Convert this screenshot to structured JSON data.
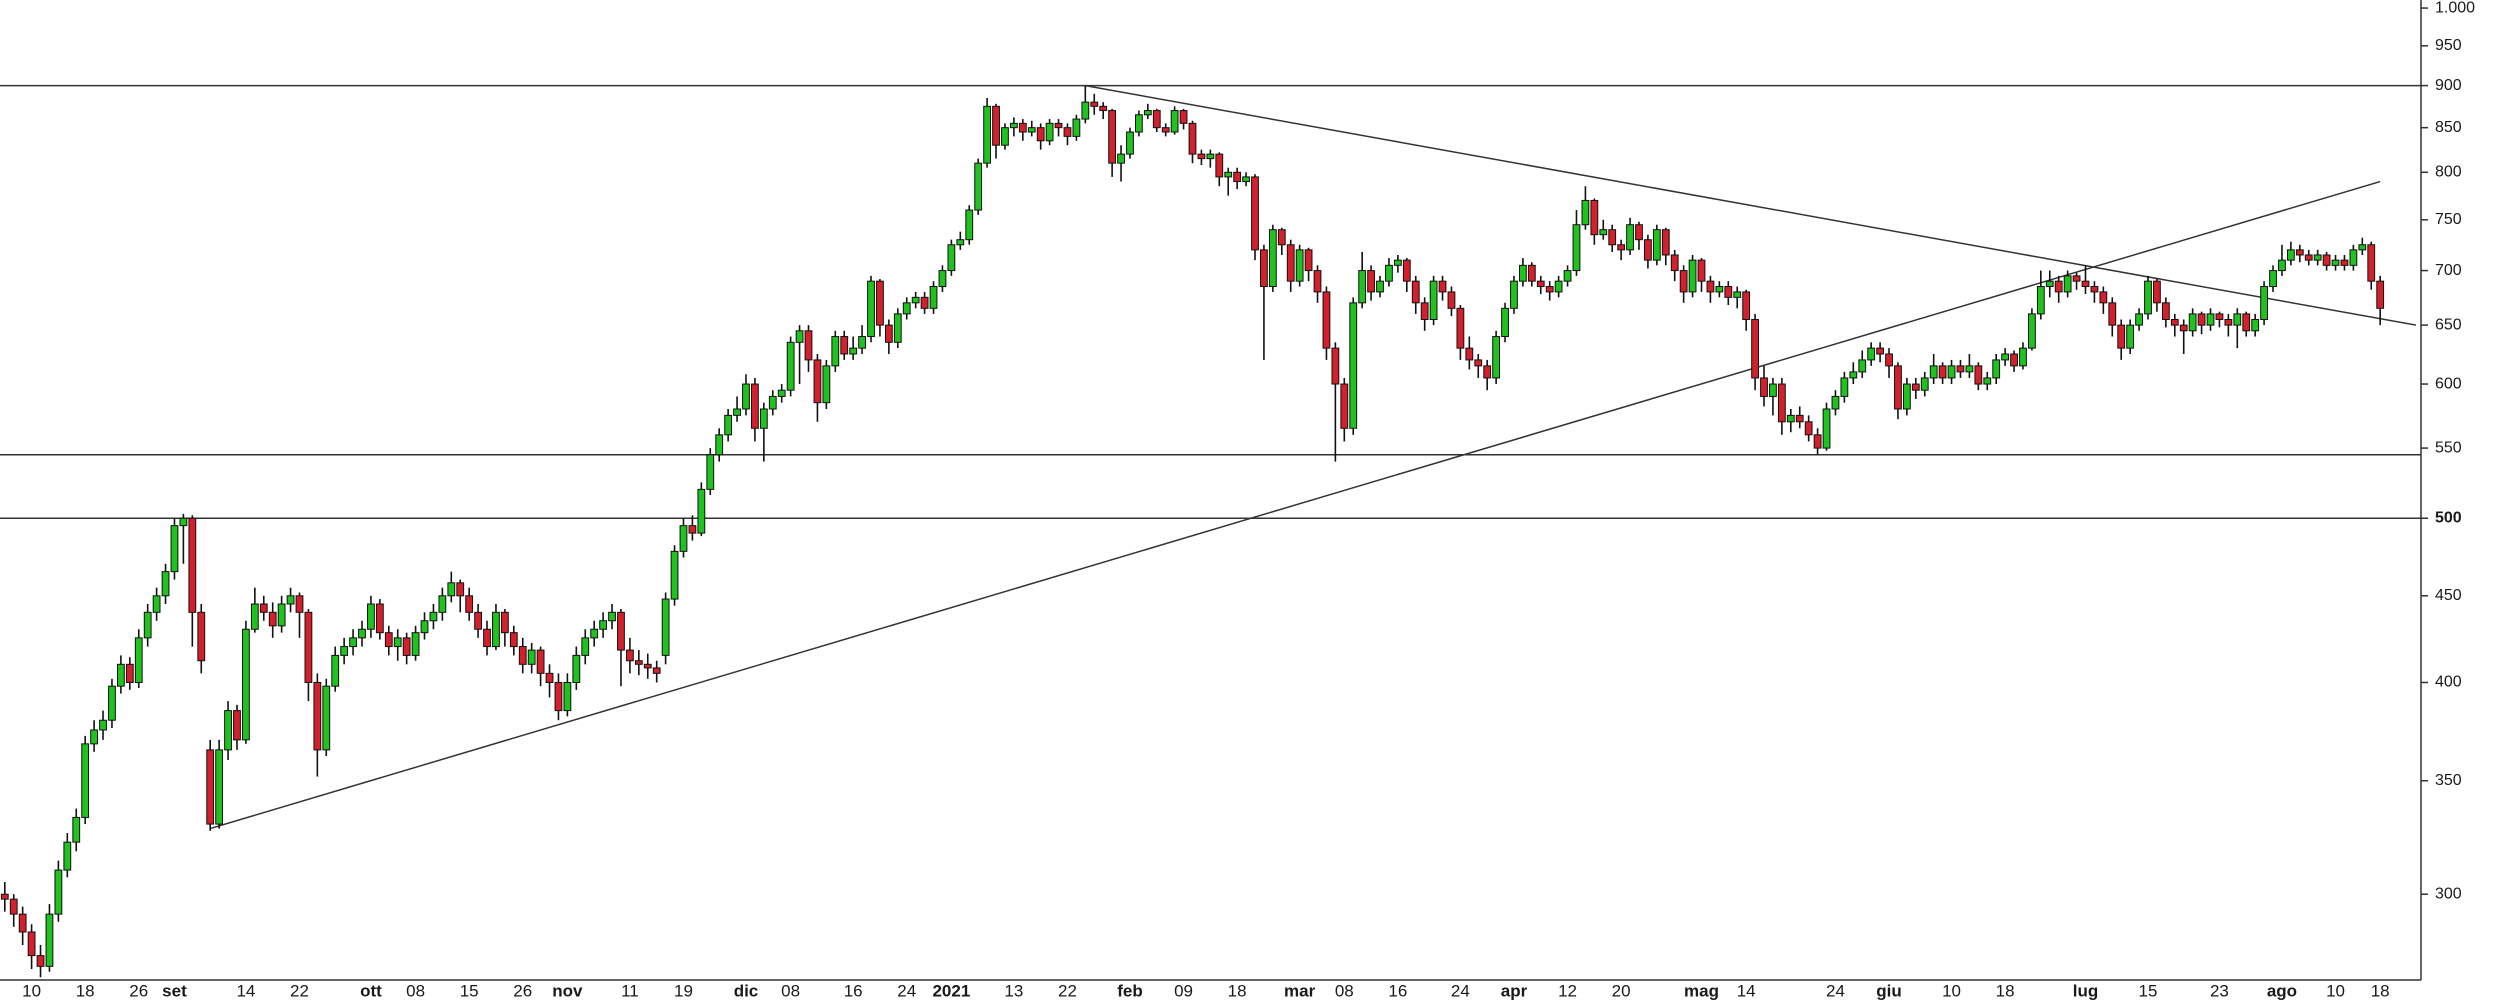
{
  "chart_data": {
    "type": "candlestick",
    "log_scale": true,
    "ylim": [
      267,
      1011
    ],
    "yticks": [
      300,
      350,
      400,
      450,
      500,
      550,
      600,
      650,
      700,
      750,
      800,
      850,
      900,
      950,
      {
        "value": 1000,
        "label": "1.000"
      }
    ],
    "up_color": "#1fc21f",
    "down_color": "#d3202c",
    "hlines": [
      900,
      545,
      500
    ],
    "trendlines": [
      {
        "x": [
          23,
          266
        ],
        "y": [
          328,
          790
        ]
      },
      {
        "x": [
          121,
          270
        ],
        "y": [
          900,
          650
        ]
      }
    ],
    "categories": [
      null,
      null,
      null,
      "10",
      null,
      null,
      null,
      null,
      null,
      "18",
      null,
      null,
      null,
      null,
      null,
      "26",
      null,
      null,
      null,
      "set",
      null,
      null,
      null,
      null,
      null,
      null,
      null,
      "14",
      null,
      null,
      null,
      null,
      null,
      "22",
      null,
      null,
      null,
      null,
      null,
      null,
      null,
      "ott",
      null,
      null,
      null,
      null,
      "08",
      null,
      null,
      null,
      null,
      null,
      "15",
      null,
      null,
      null,
      null,
      null,
      "26",
      null,
      null,
      null,
      null,
      "nov",
      null,
      null,
      null,
      null,
      null,
      null,
      "11",
      null,
      null,
      null,
      null,
      null,
      "19",
      null,
      null,
      null,
      null,
      null,
      null,
      "dic",
      null,
      null,
      null,
      null,
      "08",
      null,
      null,
      null,
      null,
      null,
      null,
      "16",
      null,
      null,
      null,
      null,
      null,
      "24",
      null,
      null,
      null,
      null,
      "2021",
      null,
      null,
      null,
      null,
      null,
      null,
      "13",
      null,
      null,
      null,
      null,
      null,
      "22",
      null,
      null,
      null,
      null,
      null,
      null,
      "feb",
      null,
      null,
      null,
      null,
      null,
      "09",
      null,
      null,
      null,
      null,
      null,
      "18",
      null,
      null,
      null,
      null,
      null,
      null,
      "mar",
      null,
      null,
      null,
      null,
      "08",
      null,
      null,
      null,
      null,
      null,
      "16",
      null,
      null,
      null,
      null,
      null,
      null,
      "24",
      null,
      null,
      null,
      null,
      null,
      "apr",
      null,
      null,
      null,
      null,
      null,
      "12",
      null,
      null,
      null,
      null,
      null,
      "20",
      null,
      null,
      null,
      null,
      null,
      null,
      null,
      null,
      "mag",
      null,
      null,
      null,
      null,
      "14",
      null,
      null,
      null,
      null,
      null,
      null,
      null,
      null,
      null,
      "24",
      null,
      null,
      null,
      null,
      null,
      "giu",
      null,
      null,
      null,
      null,
      null,
      null,
      "10",
      null,
      null,
      null,
      null,
      null,
      "18",
      null,
      null,
      null,
      null,
      null,
      null,
      null,
      null,
      "lug",
      null,
      null,
      null,
      null,
      null,
      null,
      "15",
      null,
      null,
      null,
      null,
      null,
      null,
      null,
      "23",
      null,
      null,
      null,
      null,
      null,
      null,
      "ago",
      null,
      null,
      null,
      null,
      null,
      "10",
      null,
      null,
      null,
      null,
      "18"
    ],
    "open": [
      300,
      298,
      292,
      285,
      276,
      272,
      292,
      310,
      322,
      333,
      368,
      375,
      380,
      398,
      410,
      400,
      425,
      440,
      450,
      465,
      495,
      500,
      440,
      365,
      330,
      365,
      385,
      370,
      430,
      445,
      440,
      432,
      445,
      450,
      440,
      400,
      365,
      398,
      415,
      420,
      425,
      430,
      445,
      428,
      420,
      425,
      415,
      428,
      435,
      440,
      450,
      458,
      450,
      440,
      430,
      420,
      440,
      428,
      420,
      410,
      418,
      405,
      400,
      385,
      400,
      415,
      425,
      430,
      435,
      440,
      418,
      412,
      410,
      408,
      415,
      448,
      478,
      495,
      490,
      520,
      545,
      560,
      575,
      580,
      600,
      565,
      580,
      590,
      595,
      635,
      645,
      620,
      585,
      615,
      640,
      625,
      630,
      640,
      690,
      650,
      635,
      660,
      670,
      675,
      665,
      685,
      700,
      725,
      730,
      760,
      810,
      875,
      830,
      850,
      855,
      845,
      850,
      835,
      855,
      850,
      840,
      860,
      880,
      875,
      870,
      810,
      820,
      845,
      865,
      870,
      850,
      845,
      870,
      855,
      820,
      815,
      820,
      795,
      800,
      790,
      795,
      720,
      685,
      740,
      725,
      690,
      720,
      700,
      680,
      630,
      600,
      565,
      670,
      700,
      680,
      690,
      705,
      710,
      690,
      670,
      655,
      690,
      680,
      665,
      630,
      620,
      615,
      605,
      640,
      665,
      690,
      705,
      690,
      685,
      680,
      690,
      700,
      745,
      770,
      735,
      740,
      725,
      720,
      745,
      730,
      710,
      740,
      715,
      700,
      680,
      710,
      690,
      680,
      685,
      675,
      680,
      655,
      605,
      590,
      600,
      570,
      575,
      570,
      560,
      550,
      580,
      590,
      605,
      610,
      620,
      630,
      625,
      615,
      580,
      600,
      595,
      605,
      615,
      605,
      615,
      610,
      615,
      600,
      605,
      620,
      625,
      615,
      630,
      660,
      685,
      690,
      680,
      695,
      690,
      685,
      680,
      670,
      650,
      630,
      650,
      660,
      690,
      670,
      655,
      650,
      645,
      660,
      650,
      660,
      655,
      650,
      660,
      645,
      655,
      685,
      700,
      710,
      720,
      715,
      710,
      715,
      705,
      710,
      705,
      720,
      725,
      690
    ],
    "high": [
      305,
      300,
      295,
      288,
      280,
      296,
      314,
      326,
      337,
      372,
      380,
      385,
      402,
      415,
      414,
      430,
      445,
      455,
      470,
      500,
      503,
      502,
      445,
      370,
      370,
      390,
      388,
      435,
      455,
      450,
      446,
      450,
      455,
      452,
      442,
      405,
      402,
      420,
      425,
      430,
      435,
      450,
      448,
      432,
      430,
      428,
      432,
      440,
      445,
      455,
      465,
      460,
      455,
      445,
      435,
      445,
      442,
      432,
      425,
      422,
      420,
      410,
      405,
      405,
      420,
      430,
      435,
      440,
      445,
      442,
      425,
      418,
      416,
      412,
      452,
      482,
      500,
      502,
      525,
      550,
      565,
      580,
      590,
      608,
      605,
      585,
      595,
      600,
      640,
      650,
      650,
      625,
      620,
      645,
      645,
      640,
      650,
      695,
      692,
      655,
      665,
      675,
      680,
      680,
      690,
      705,
      730,
      738,
      765,
      815,
      885,
      878,
      855,
      862,
      860,
      858,
      855,
      860,
      860,
      855,
      865,
      900,
      890,
      880,
      872,
      830,
      850,
      870,
      878,
      872,
      855,
      875,
      872,
      858,
      825,
      825,
      822,
      805,
      805,
      800,
      798,
      725,
      745,
      742,
      730,
      725,
      722,
      705,
      685,
      635,
      605,
      675,
      718,
      705,
      695,
      712,
      715,
      712,
      695,
      675,
      695,
      695,
      685,
      668,
      640,
      625,
      620,
      645,
      670,
      695,
      712,
      708,
      695,
      690,
      695,
      705,
      760,
      785,
      772,
      750,
      745,
      730,
      752,
      748,
      735,
      745,
      742,
      720,
      705,
      715,
      712,
      695,
      690,
      690,
      685,
      682,
      660,
      615,
      605,
      605,
      580,
      582,
      575,
      565,
      585,
      595,
      610,
      618,
      628,
      635,
      635,
      630,
      618,
      605,
      605,
      610,
      625,
      618,
      620,
      620,
      625,
      618,
      610,
      625,
      630,
      628,
      635,
      665,
      700,
      700,
      695,
      700,
      698,
      705,
      690,
      685,
      675,
      655,
      655,
      665,
      695,
      692,
      675,
      660,
      655,
      665,
      662,
      665,
      662,
      660,
      665,
      662,
      660,
      690,
      705,
      725,
      728,
      725,
      720,
      720,
      718,
      715,
      715,
      725,
      732,
      728,
      695
    ],
    "low": [
      293,
      287,
      280,
      271,
      268,
      270,
      289,
      307,
      318,
      330,
      364,
      370,
      376,
      394,
      396,
      397,
      420,
      435,
      445,
      460,
      470,
      420,
      405,
      327,
      328,
      360,
      365,
      368,
      428,
      435,
      425,
      428,
      440,
      425,
      390,
      352,
      362,
      395,
      410,
      415,
      420,
      425,
      424,
      415,
      412,
      410,
      412,
      424,
      430,
      435,
      446,
      440,
      435,
      425,
      415,
      418,
      420,
      415,
      405,
      405,
      398,
      392,
      380,
      382,
      396,
      410,
      420,
      425,
      430,
      398,
      405,
      404,
      402,
      400,
      410,
      444,
      474,
      485,
      488,
      516,
      540,
      555,
      570,
      575,
      555,
      540,
      575,
      585,
      590,
      600,
      610,
      570,
      580,
      610,
      620,
      620,
      625,
      635,
      640,
      625,
      630,
      655,
      665,
      660,
      660,
      680,
      695,
      720,
      725,
      755,
      805,
      815,
      825,
      840,
      835,
      840,
      825,
      830,
      840,
      830,
      835,
      855,
      865,
      860,
      795,
      790,
      815,
      840,
      860,
      845,
      840,
      842,
      848,
      810,
      808,
      805,
      785,
      775,
      782,
      785,
      710,
      620,
      680,
      715,
      680,
      685,
      690,
      670,
      620,
      540,
      555,
      560,
      665,
      672,
      675,
      685,
      698,
      680,
      660,
      645,
      650,
      672,
      658,
      620,
      612,
      605,
      595,
      600,
      635,
      660,
      685,
      685,
      678,
      672,
      675,
      685,
      695,
      740,
      725,
      730,
      718,
      710,
      715,
      720,
      702,
      705,
      705,
      690,
      670,
      675,
      680,
      670,
      675,
      668,
      665,
      645,
      595,
      582,
      575,
      560,
      562,
      565,
      555,
      545,
      548,
      575,
      585,
      600,
      605,
      615,
      618,
      605,
      572,
      575,
      588,
      590,
      600,
      600,
      600,
      605,
      605,
      595,
      595,
      600,
      615,
      610,
      612,
      628,
      655,
      675,
      670,
      675,
      682,
      678,
      670,
      660,
      640,
      620,
      625,
      645,
      655,
      662,
      648,
      640,
      625,
      640,
      642,
      645,
      648,
      640,
      630,
      640,
      640,
      650,
      680,
      695,
      705,
      708,
      705,
      705,
      700,
      700,
      700,
      700,
      715,
      682,
      650
    ],
    "close": [
      298,
      292,
      285,
      276,
      272,
      292,
      310,
      322,
      333,
      368,
      375,
      380,
      398,
      410,
      400,
      425,
      440,
      450,
      465,
      495,
      500,
      440,
      412,
      330,
      365,
      385,
      370,
      430,
      445,
      440,
      432,
      445,
      450,
      440,
      400,
      365,
      398,
      415,
      420,
      425,
      430,
      445,
      428,
      420,
      425,
      415,
      428,
      435,
      440,
      450,
      458,
      450,
      440,
      430,
      420,
      440,
      428,
      420,
      410,
      418,
      405,
      400,
      385,
      400,
      415,
      425,
      430,
      435,
      440,
      418,
      412,
      410,
      408,
      405,
      448,
      478,
      495,
      490,
      520,
      545,
      560,
      575,
      580,
      600,
      565,
      580,
      590,
      595,
      635,
      645,
      620,
      585,
      615,
      640,
      625,
      630,
      640,
      690,
      650,
      635,
      660,
      670,
      675,
      665,
      685,
      700,
      725,
      730,
      760,
      810,
      875,
      830,
      850,
      855,
      845,
      850,
      835,
      855,
      850,
      840,
      860,
      880,
      875,
      870,
      810,
      820,
      845,
      865,
      870,
      850,
      845,
      870,
      855,
      820,
      815,
      820,
      795,
      800,
      790,
      795,
      720,
      685,
      740,
      725,
      690,
      720,
      700,
      680,
      630,
      600,
      565,
      670,
      700,
      680,
      690,
      705,
      710,
      690,
      670,
      655,
      690,
      680,
      665,
      630,
      620,
      615,
      605,
      640,
      665,
      690,
      705,
      690,
      685,
      680,
      690,
      700,
      745,
      770,
      735,
      740,
      725,
      720,
      745,
      730,
      710,
      740,
      715,
      700,
      680,
      710,
      690,
      680,
      685,
      675,
      680,
      655,
      605,
      590,
      600,
      570,
      575,
      570,
      560,
      550,
      580,
      590,
      605,
      610,
      620,
      630,
      625,
      615,
      580,
      600,
      595,
      605,
      615,
      605,
      615,
      610,
      615,
      600,
      605,
      620,
      625,
      615,
      630,
      660,
      685,
      690,
      680,
      695,
      690,
      685,
      680,
      670,
      650,
      630,
      650,
      660,
      690,
      670,
      655,
      650,
      645,
      660,
      650,
      660,
      655,
      650,
      660,
      645,
      655,
      685,
      700,
      710,
      720,
      715,
      710,
      715,
      705,
      710,
      705,
      720,
      725,
      690,
      665
    ]
  }
}
